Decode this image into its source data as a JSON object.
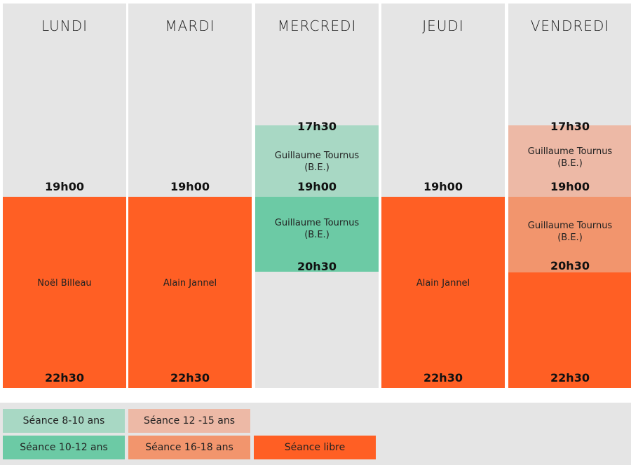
{
  "colors": {
    "col_bg": "#e5e5e5",
    "seance_8_10": "#a8d8c4",
    "seance_10_12": "#6ccaa5",
    "seance_12_15": "#edb9a6",
    "seance_16_18": "#f2956d",
    "seance_libre": "#ff5f24"
  },
  "days": [
    {
      "name": "LUNDI",
      "t1": "19h00",
      "coach": "Noël Billeau",
      "t2": "22h30"
    },
    {
      "name": "MARDI",
      "t1": "19h00",
      "coach": "Alain Jannel",
      "t2": "22h30"
    },
    {
      "name": "MERCREDI",
      "t0": "17h30",
      "coach1": "Guillaume Tournus",
      "coach1b": "(B.E.)",
      "t1": "19h00",
      "coach2": "Guillaume Tournus",
      "coach2b": "(B.E.)",
      "t2": "20h30"
    },
    {
      "name": "JEUDI",
      "t1": "19h00",
      "coach": "Alain Jannel",
      "t2": "22h30"
    },
    {
      "name": "VENDREDI",
      "t0": "17h30",
      "coach1": "Guillaume Tournus",
      "coach1b": "(B.E.)",
      "t1": "19h00",
      "coach2": "Guillaume Tournus",
      "coach2b": "(B.E.)",
      "t2": "20h30",
      "t3": "22h30"
    }
  ],
  "legend": {
    "s8_10": "Séance 8-10 ans",
    "s10_12": "Séance 10-12 ans",
    "s12_15": "Séance 12 -15 ans",
    "s16_18": "Séance 16-18 ans",
    "libre": "Séance libre"
  }
}
